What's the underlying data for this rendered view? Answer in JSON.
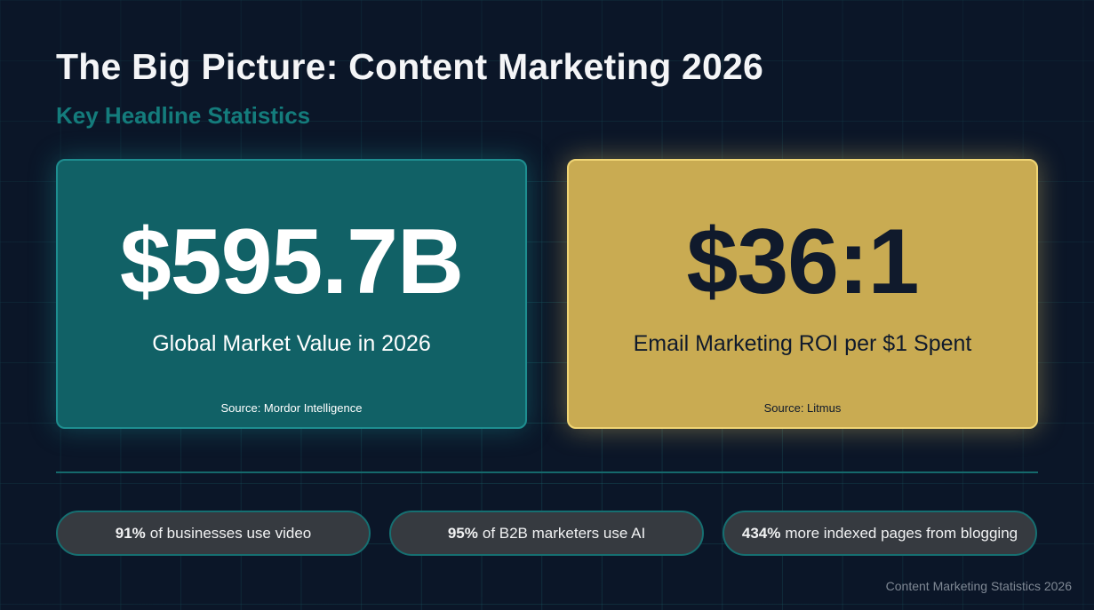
{
  "header": {
    "title": "The Big Picture: Content Marketing 2026",
    "subtitle": "Key Headline Statistics"
  },
  "cards": [
    {
      "value": "$595.7B",
      "label": "Global Market Value in 2026",
      "source": "Source: Mordor Intelligence",
      "color": "#116166"
    },
    {
      "value": "$36:1",
      "label": "Email Marketing ROI per $1 Spent",
      "source": "Source: Litmus",
      "color": "#c9ab52"
    }
  ],
  "stats": [
    {
      "figure": "91%",
      "text": "of businesses use video"
    },
    {
      "figure": "95%",
      "text": "of B2B marketers use AI"
    },
    {
      "figure": "434%",
      "text": "more indexed pages from blogging"
    }
  ],
  "footer": "Content Marketing Statistics 2026",
  "colors": {
    "background": "#0b1628",
    "accent_teal": "#147c7c",
    "accent_gold": "#f0d575"
  }
}
